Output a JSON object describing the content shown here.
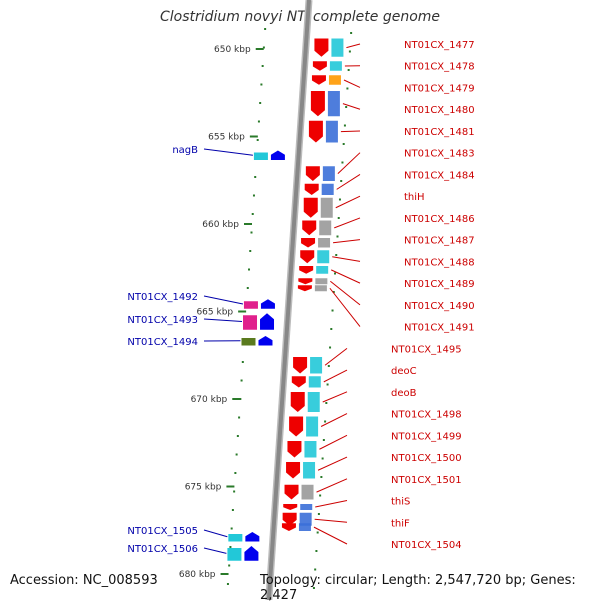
{
  "title": "Clostridium novyi NT, complete genome",
  "footer": {
    "accession": "Accession: NC_008593",
    "topology": "Topology: circular; Length: 2,547,720 bp; Genes: 2,427"
  },
  "colors": {
    "backbone": "#888888",
    "tick": "#2a7a2a",
    "label_right": "#cc0000",
    "label_left": "#0000aa",
    "gene_forward": "#0000ee",
    "gene_reverse": "#ee0000",
    "cog_cyan": "#22c8d8",
    "cog_orange": "#ff9900",
    "cog_gray": "#999999",
    "cog_magenta": "#e0208c",
    "cog_olive": "#5a7a1e",
    "cog_blue": "#3b6fd8"
  },
  "kbp_ticks": [
    {
      "label": "650 kbp",
      "kbp": 650
    },
    {
      "label": "655 kbp",
      "kbp": 655
    },
    {
      "label": "660 kbp",
      "kbp": 660
    },
    {
      "label": "665 kbp",
      "kbp": 665
    },
    {
      "label": "670 kbp",
      "kbp": 670
    },
    {
      "label": "675 kbp",
      "kbp": 675
    },
    {
      "label": "680 kbp",
      "kbp": 680
    }
  ],
  "genes_right": [
    {
      "label": "NT01CX_1477",
      "kbp": 649.4,
      "len": 1.1
    },
    {
      "label": "NT01CX_1478",
      "kbp": 650.7,
      "len": 0.6
    },
    {
      "label": "NT01CX_1479",
      "kbp": 651.5,
      "len": 0.6
    },
    {
      "label": "NT01CX_1480",
      "kbp": 652.4,
      "len": 1.5
    },
    {
      "label": "NT01CX_1481",
      "kbp": 654.1,
      "len": 1.3
    },
    {
      "label": "NT01CX_1483",
      "kbp": 656.7,
      "len": 0.9
    },
    {
      "label": "NT01CX_1484",
      "kbp": 657.7,
      "len": 0.7
    },
    {
      "label": "thiH",
      "kbp": 658.5,
      "len": 1.2
    },
    {
      "label": "NT01CX_1486",
      "kbp": 659.8,
      "len": 0.9
    },
    {
      "label": "NT01CX_1487",
      "kbp": 660.8,
      "len": 0.6
    },
    {
      "label": "NT01CX_1488",
      "kbp": 661.5,
      "len": 0.8
    },
    {
      "label": "NT01CX_1489",
      "kbp": 662.4,
      "len": 0.5
    },
    {
      "label": "NT01CX_1490",
      "kbp": 663.1,
      "len": 0.3
    },
    {
      "label": "NT01CX_1491",
      "kbp": 663.5,
      "len": 0.4
    },
    {
      "label": "NT01CX_1495",
      "kbp": 667.6,
      "len": 1.0
    },
    {
      "label": "deoC",
      "kbp": 668.7,
      "len": 0.7
    },
    {
      "label": "deoB",
      "kbp": 669.6,
      "len": 1.2
    },
    {
      "label": "NT01CX_1498",
      "kbp": 671.0,
      "len": 1.2
    },
    {
      "label": "NT01CX_1499",
      "kbp": 672.4,
      "len": 1.0
    },
    {
      "label": "NT01CX_1500",
      "kbp": 673.6,
      "len": 1.0
    },
    {
      "label": "NT01CX_1501",
      "kbp": 674.9,
      "len": 0.9
    },
    {
      "label": "thiS",
      "kbp": 676.0,
      "len": 0.4
    },
    {
      "label": "thiF",
      "kbp": 676.5,
      "len": 0.8
    },
    {
      "label": "NT01CX_1504",
      "kbp": 677.1,
      "len": 0.5
    }
  ],
  "genes_left": [
    {
      "label": "nagB",
      "kbp": 655.8,
      "len": 0.6
    },
    {
      "label": "NT01CX_1492",
      "kbp": 664.3,
      "len": 0.6
    },
    {
      "label": "NT01CX_1493",
      "kbp": 665.1,
      "len": 1.0
    },
    {
      "label": "NT01CX_1494",
      "kbp": 666.4,
      "len": 0.6
    },
    {
      "label": "NT01CX_1505",
      "kbp": 677.6,
      "len": 0.6
    },
    {
      "label": "NT01CX_1506",
      "kbp": 678.4,
      "len": 0.9
    }
  ]
}
